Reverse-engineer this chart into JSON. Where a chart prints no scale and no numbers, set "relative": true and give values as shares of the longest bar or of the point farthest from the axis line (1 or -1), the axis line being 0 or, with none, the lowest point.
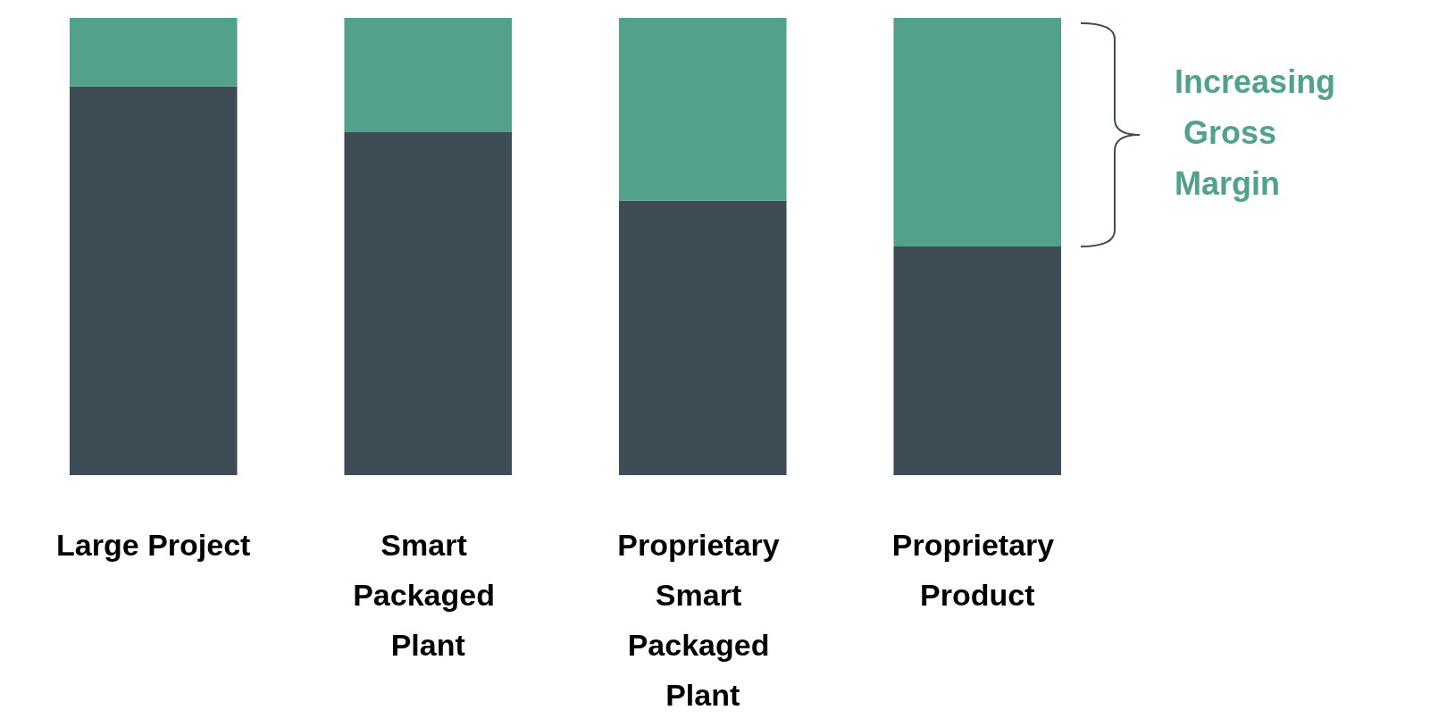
{
  "chart_data": {
    "type": "bar",
    "stacked": true,
    "relative": true,
    "categories": [
      "Large Project",
      "Smart Packaged Plant",
      "Proprietary Smart Packaged Plant",
      "Proprietary Product"
    ],
    "series": [
      {
        "color": "#3e4c55",
        "values": [
          0.85,
          0.75,
          0.6,
          0.5
        ]
      },
      {
        "color": "#52a18b",
        "values": [
          0.15,
          0.25,
          0.4,
          0.5
        ]
      }
    ],
    "annotations": [
      "Increasing Gross Margin"
    ]
  }
}
